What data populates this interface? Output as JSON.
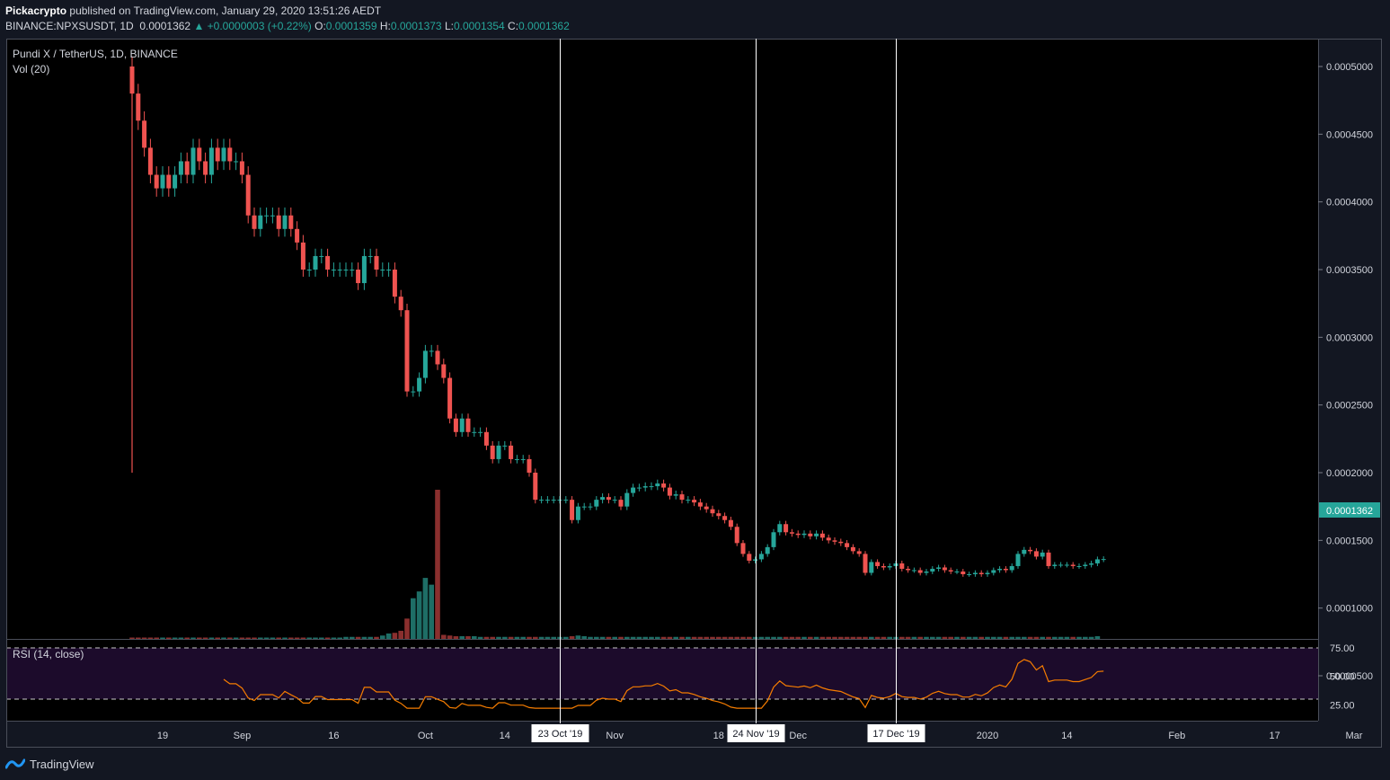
{
  "header": {
    "author": "Pickacrypto",
    "published": "published on TradingView.com, January 29, 2020 13:51:26 AEDT",
    "symbol_line": "BINANCE:NPXSUSDT, 1D",
    "last": "0.0001362",
    "change": "▲ +0.0000003 (+0.22%)",
    "o_label": "O:",
    "o": "0.0001359",
    "h_label": "H:",
    "h": "0.0001373",
    "l_label": "L:",
    "l": "0.0001354",
    "c_label": "C:",
    "c": "0.0001362"
  },
  "pane": {
    "title": "Pundi X / TetherUS, 1D, BINANCE",
    "vol_label": "Vol (20)",
    "rsi_label": "RSI (14, close)"
  },
  "price_axis": [
    "0.0005000",
    "0.0004500",
    "0.0004000",
    "0.0003500",
    "0.0003000",
    "0.0002500",
    "0.0002000",
    "0.0001500",
    "0.0001000",
    "0.0000500"
  ],
  "price_badge": "0.0001362",
  "rsi_axis": [
    "75.00",
    "50.00",
    "25.00"
  ],
  "time_axis": [
    "19",
    "Sep",
    "16",
    "Oct",
    "14",
    "Nov",
    "18",
    "Dec",
    "2020",
    "14",
    "Feb",
    "17",
    "Mar"
  ],
  "markers": [
    "23 Oct '19",
    "24 Nov '19",
    "17 Dec '19"
  ],
  "footer": {
    "brand": "TradingView"
  },
  "colors": {
    "up": "#26a69a",
    "down": "#ef5350",
    "rsi": "#f57c00",
    "rsi_band": "#1c0b2b",
    "background": "#000000"
  },
  "chart_data": {
    "type": "candlestick",
    "symbol": "NPXSUSDT",
    "interval": "1D",
    "ylim": [
      2e-05,
      0.00052
    ],
    "date_range": [
      "2019-08-14",
      "2020-01-29"
    ],
    "marker_dates": [
      "2019-10-23",
      "2019-11-24",
      "2019-12-17"
    ],
    "closes": [
      0.00048,
      0.00046,
      0.00044,
      0.00042,
      0.00041,
      0.00042,
      0.00041,
      0.00042,
      0.00043,
      0.00042,
      0.00044,
      0.00043,
      0.00042,
      0.00044,
      0.00043,
      0.00044,
      0.00043,
      0.00043,
      0.00042,
      0.00039,
      0.00038,
      0.00039,
      0.00039,
      0.00039,
      0.00038,
      0.00039,
      0.00038,
      0.00037,
      0.00035,
      0.00035,
      0.00036,
      0.00036,
      0.00035,
      0.00035,
      0.00035,
      0.00035,
      0.00035,
      0.00034,
      0.00036,
      0.00036,
      0.00035,
      0.00035,
      0.00035,
      0.00033,
      0.00032,
      0.00026,
      0.00026,
      0.00027,
      0.00029,
      0.00029,
      0.00028,
      0.00027,
      0.00024,
      0.00023,
      0.00024,
      0.00023,
      0.00023,
      0.00023,
      0.00022,
      0.00021,
      0.00022,
      0.00022,
      0.00021,
      0.00021,
      0.00021,
      0.0002,
      0.00018,
      0.00018,
      0.00018,
      0.00018,
      0.00018,
      0.00018,
      0.000165,
      0.000175,
      0.000175,
      0.000175,
      0.00018,
      0.000182,
      0.00018,
      0.00018,
      0.000175,
      0.000185,
      0.000189,
      0.000189,
      0.00019,
      0.00019,
      0.000192,
      0.000189,
      0.000183,
      0.000184,
      0.00018,
      0.00018,
      0.000178,
      0.000175,
      0.000173,
      0.00017,
      0.000168,
      0.000165,
      0.00016,
      0.000148,
      0.00014,
      0.000135,
      0.000136,
      0.00014,
      0.000145,
      0.000156,
      0.000162,
      0.000156,
      0.000155,
      0.000154,
      0.000155,
      0.000153,
      0.000155,
      0.000152,
      0.00015,
      0.000149,
      0.000148,
      0.000145,
      0.000142,
      0.00014,
      0.000126,
      0.000134,
      0.000131,
      0.00013,
      0.000131,
      0.000133,
      0.000129,
      0.000128,
      0.000128,
      0.000126,
      0.000127,
      0.000129,
      0.00013,
      0.000128,
      0.000127,
      0.000127,
      0.000125,
      0.000125,
      0.000126,
      0.000125,
      0.000126,
      0.000128,
      0.000129,
      0.000128,
      0.000131,
      0.00014,
      0.000143,
      0.000142,
      0.000138,
      0.000141,
      0.000131,
      0.000132,
      0.000132,
      0.000132,
      0.000131,
      0.000131,
      0.000132,
      0.000133,
      0.000136,
      0.0001362
    ],
    "volume_series": [
      0.2,
      0.2,
      0.2,
      0.2,
      0.2,
      0.2,
      0.2,
      0.2,
      0.2,
      0.2,
      0.2,
      0.2,
      0.2,
      0.2,
      0.2,
      0.2,
      0.2,
      0.2,
      0.2,
      0.2,
      0.2,
      0.2,
      0.2,
      0.2,
      0.2,
      0.2,
      0.2,
      0.2,
      0.2,
      0.2,
      0.2,
      0.2,
      0.2,
      0.2,
      0.2,
      0.3,
      0.3,
      0.3,
      0.3,
      0.3,
      0.3,
      0.5,
      0.8,
      0.9,
      1.2,
      3,
      6,
      7,
      9,
      8,
      22,
      0.6,
      0.5,
      0.4,
      0.4,
      0.4,
      0.4,
      0.3,
      0.3,
      0.3,
      0.3,
      0.3,
      0.3,
      0.3,
      0.3,
      0.3,
      0.3,
      0.3,
      0.3,
      0.3,
      0.3,
      0.3,
      0.4,
      0.5,
      0.4,
      0.3,
      0.3,
      0.3,
      0.3,
      0.3,
      0.3,
      0.3,
      0.3,
      0.3,
      0.3,
      0.3,
      0.3,
      0.3,
      0.3,
      0.3,
      0.3,
      0.3,
      0.3,
      0.3,
      0.3,
      0.3,
      0.3,
      0.3,
      0.3,
      0.3,
      0.3,
      0.3,
      0.3,
      0.3,
      0.3,
      0.3,
      0.3,
      0.3,
      0.3,
      0.3,
      0.3,
      0.3,
      0.3,
      0.3,
      0.3,
      0.3,
      0.3,
      0.3,
      0.3,
      0.3,
      0.3,
      0.3,
      0.3,
      0.3,
      0.3,
      0.3,
      0.3,
      0.3,
      0.3,
      0.3,
      0.3,
      0.3,
      0.3,
      0.3,
      0.3,
      0.3,
      0.3,
      0.3,
      0.3,
      0.3,
      0.3,
      0.3,
      0.3,
      0.3,
      0.3,
      0.3,
      0.3,
      0.3,
      0.3,
      0.3,
      0.3,
      0.3,
      0.3,
      0.3,
      0.3,
      0.3,
      0.3,
      0.3,
      0.4
    ],
    "rsi": {
      "period": 14,
      "levels": [
        30,
        70
      ],
      "ylim": [
        20,
        80
      ]
    },
    "legend": "none"
  }
}
